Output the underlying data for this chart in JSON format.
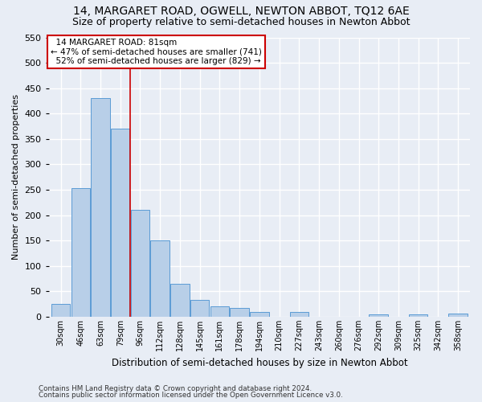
{
  "title": "14, MARGARET ROAD, OGWELL, NEWTON ABBOT, TQ12 6AE",
  "subtitle": "Size of property relative to semi-detached houses in Newton Abbot",
  "xlabel": "Distribution of semi-detached houses by size in Newton Abbot",
  "ylabel": "Number of semi-detached properties",
  "footer_line1": "Contains HM Land Registry data © Crown copyright and database right 2024.",
  "footer_line2": "Contains public sector information licensed under the Open Government Licence v3.0.",
  "categories": [
    "30sqm",
    "46sqm",
    "63sqm",
    "79sqm",
    "96sqm",
    "112sqm",
    "128sqm",
    "145sqm",
    "161sqm",
    "178sqm",
    "194sqm",
    "210sqm",
    "227sqm",
    "243sqm",
    "260sqm",
    "276sqm",
    "292sqm",
    "309sqm",
    "325sqm",
    "342sqm",
    "358sqm"
  ],
  "values": [
    25,
    253,
    430,
    370,
    210,
    150,
    64,
    33,
    20,
    18,
    9,
    0,
    9,
    0,
    0,
    0,
    5,
    0,
    4,
    0,
    6
  ],
  "bar_color": "#b8cfe8",
  "bar_edge_color": "#5b9bd5",
  "subject_line_index": 3.5,
  "subject_line_color": "#cc0000",
  "property_label": "14 MARGARET ROAD: 81sqm",
  "pct_smaller": 47,
  "count_smaller": 741,
  "pct_larger": 52,
  "count_larger": 829,
  "annotation_box_color": "#ffffff",
  "annotation_box_edge_color": "#cc0000",
  "ylim": [
    0,
    550
  ],
  "yticks": [
    0,
    50,
    100,
    150,
    200,
    250,
    300,
    350,
    400,
    450,
    500,
    550
  ],
  "background_color": "#e8edf5",
  "grid_color": "#ffffff",
  "title_fontsize": 10,
  "subtitle_fontsize": 9,
  "xlabel_fontsize": 8.5,
  "ylabel_fontsize": 8
}
